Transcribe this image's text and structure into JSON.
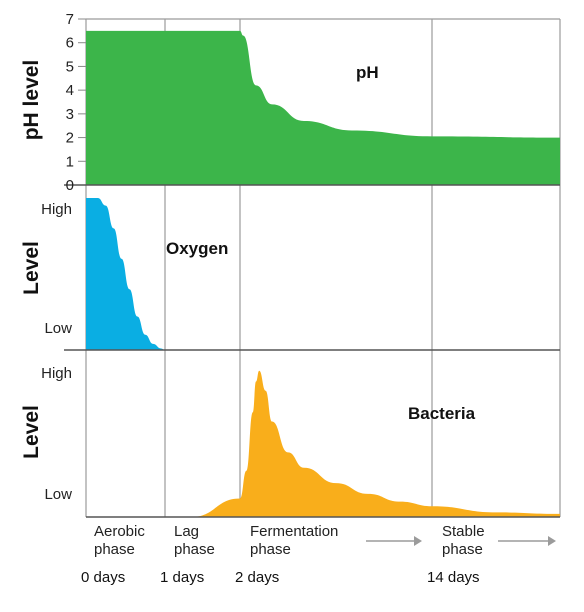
{
  "chart_data": [
    {
      "type": "area",
      "panel": "ph",
      "ylabel": "pH level",
      "ylim": [
        0,
        7
      ],
      "yticks": [
        "0",
        "1",
        "2",
        "3",
        "4",
        "5",
        "6",
        "7"
      ],
      "series": [
        {
          "name": "pH",
          "color": "#3cb54a",
          "x": [
            0,
            1,
            2,
            2.2,
            3,
            4,
            6,
            9,
            14,
            20
          ],
          "y": [
            6.5,
            6.5,
            6.5,
            6.3,
            4.2,
            3.4,
            2.7,
            2.3,
            2.05,
            2.0
          ]
        }
      ]
    },
    {
      "type": "area",
      "panel": "oxygen",
      "ylabel": "Level",
      "ylim": [
        0,
        1
      ],
      "yticks": [
        "Low",
        "High"
      ],
      "series": [
        {
          "name": "Oxygen",
          "color": "#0aaee3",
          "x": [
            0,
            0.15,
            0.25,
            0.35,
            0.45,
            0.55,
            0.65,
            0.75,
            0.85,
            0.95,
            1.0
          ],
          "y": [
            1.0,
            1.0,
            0.95,
            0.8,
            0.6,
            0.4,
            0.22,
            0.1,
            0.04,
            0.01,
            0.0
          ]
        }
      ]
    },
    {
      "type": "area",
      "panel": "bacteria",
      "ylabel": "Level",
      "ylim": [
        0,
        1
      ],
      "yticks": [
        "Low",
        "High"
      ],
      "series": [
        {
          "name": "Bacteria",
          "color": "#f9ae1b",
          "x": [
            1.35,
            2,
            2.4,
            2.8,
            3.0,
            3.2,
            3.6,
            4,
            5,
            6,
            8,
            10,
            12,
            14,
            17,
            20
          ],
          "y": [
            0.0,
            0.12,
            0.3,
            0.68,
            0.88,
            0.95,
            0.82,
            0.62,
            0.42,
            0.32,
            0.22,
            0.15,
            0.1,
            0.07,
            0.03,
            0.02
          ]
        }
      ]
    }
  ],
  "axis": {
    "x_ticks": [
      {
        "day": 0,
        "label": "0 days"
      },
      {
        "day": 1,
        "label": "1 days"
      },
      {
        "day": 2,
        "label": "2 days"
      },
      {
        "day": 14,
        "label": "14 days"
      }
    ],
    "phases": [
      {
        "lines": [
          "Aerobic",
          "phase"
        ],
        "arrow": false
      },
      {
        "lines": [
          "Lag",
          "phase"
        ],
        "arrow": false
      },
      {
        "lines": [
          "Fermentation",
          "phase"
        ],
        "arrow": true
      },
      {
        "lines": [
          "Stable",
          "phase"
        ],
        "arrow": true
      }
    ],
    "grid": true
  }
}
